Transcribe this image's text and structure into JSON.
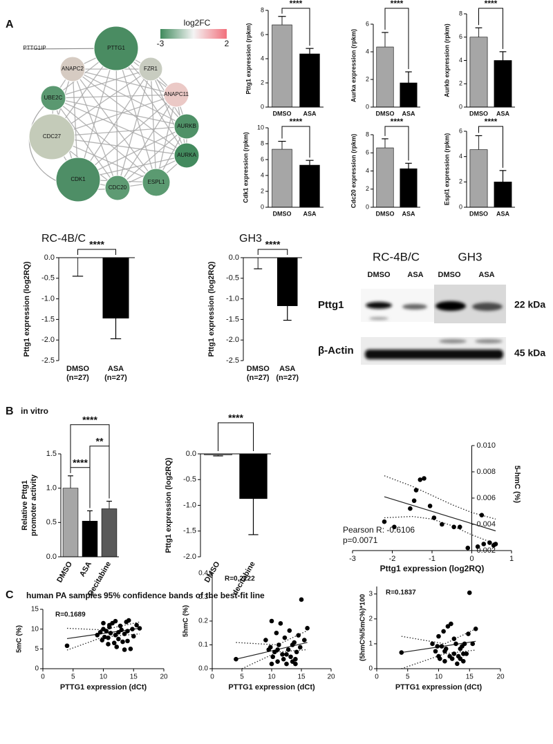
{
  "panel_labels": [
    "A",
    "B",
    "C"
  ],
  "subtitles": [
    "in vitro",
    "human PA samples",
    "95% confidence bands of the best-fit line"
  ],
  "network": {
    "legend_title": "log2FC",
    "legend_ticks": [
      -3,
      2
    ],
    "legend_colors": [
      "#3f8a5c",
      "#f4f4f4",
      "#f2707c"
    ],
    "nodes": [
      {
        "label": "PTTG1IP"
      },
      {
        "label": "PTTG1",
        "color": "#4a8c62"
      },
      {
        "label": "ANAPC2",
        "color": "#d6cbc2"
      },
      {
        "label": "FZR1",
        "color": "#c8ccc0"
      },
      {
        "label": "ANAPC11",
        "color": "#ebc9c6"
      },
      {
        "label": "UBE2C",
        "color": "#5a9870"
      },
      {
        "label": "CDC27",
        "color": "#c4cbb9"
      },
      {
        "label": "AURKB",
        "color": "#4f9167"
      },
      {
        "label": "AURKA",
        "color": "#438a5e"
      },
      {
        "label": "CDK1",
        "color": "#4e8e66"
      },
      {
        "label": "CDC20",
        "color": "#5e9b73"
      },
      {
        "label": "ESPL1",
        "color": "#5b9a71"
      }
    ]
  },
  "blot": {
    "cell_lines": [
      "RC-4B/C",
      "GH3"
    ],
    "lanes": [
      "DMSO",
      "ASA",
      "DMSO",
      "ASA"
    ],
    "proteins": [
      {
        "name": "Pttg1",
        "size": "22 kDa"
      },
      {
        "name": "β-Actin",
        "size": "45 kDa"
      }
    ]
  },
  "chart_data": [
    {
      "type": "bar",
      "ylabel": "Pttg1 expression (rpkm)",
      "categories": [
        "DMSO",
        "ASA"
      ],
      "values": [
        6.8,
        4.4
      ],
      "errors": [
        0.7,
        0.45
      ],
      "colors": [
        "#a6a6a6",
        "#000000"
      ],
      "ylim": [
        0,
        8
      ],
      "yticks": [
        0,
        2,
        4,
        6,
        8
      ],
      "significance": [
        {
          "from": 0,
          "to": 1,
          "label": "****"
        }
      ]
    },
    {
      "type": "bar",
      "ylabel": "Aurka expression (rpkm)",
      "categories": [
        "DMSO",
        "ASA"
      ],
      "values": [
        4.35,
        1.75
      ],
      "errors": [
        1.05,
        0.8
      ],
      "colors": [
        "#a6a6a6",
        "#000000"
      ],
      "ylim": [
        0,
        6
      ],
      "yticks": [
        0,
        2,
        4,
        6
      ],
      "significance": [
        {
          "from": 0,
          "to": 1,
          "label": "****"
        }
      ]
    },
    {
      "type": "bar",
      "ylabel": "Aurkb expression (rpkm)",
      "categories": [
        "DMSO",
        "ASA"
      ],
      "values": [
        6.0,
        4.0
      ],
      "errors": [
        0.8,
        0.75
      ],
      "colors": [
        "#a6a6a6",
        "#000000"
      ],
      "ylim": [
        0,
        8
      ],
      "yticks": [
        0,
        2,
        4,
        6,
        8
      ],
      "significance": [
        {
          "from": 0,
          "to": 1,
          "label": "****"
        }
      ]
    },
    {
      "type": "bar",
      "ylabel": "Cdk1 expression (rpkm)",
      "categories": [
        "DMSO",
        "ASA"
      ],
      "values": [
        7.3,
        5.3
      ],
      "errors": [
        1.0,
        0.6
      ],
      "colors": [
        "#a6a6a6",
        "#000000"
      ],
      "ylim": [
        0,
        10
      ],
      "yticks": [
        0,
        2,
        4,
        6,
        8,
        10
      ],
      "significance": [
        {
          "from": 0,
          "to": 1,
          "label": "****"
        }
      ]
    },
    {
      "type": "bar",
      "ylabel": "Cdc20 expression (rpkm)",
      "categories": [
        "DMSO",
        "ASA"
      ],
      "values": [
        6.55,
        4.25
      ],
      "errors": [
        1.0,
        0.6
      ],
      "colors": [
        "#a6a6a6",
        "#000000"
      ],
      "ylim": [
        0,
        8
      ],
      "yticks": [
        0,
        2,
        4,
        6,
        8
      ],
      "significance": [
        {
          "from": 0,
          "to": 1,
          "label": "****"
        }
      ]
    },
    {
      "type": "bar",
      "ylabel": "Espl1 expression (rpkm)",
      "categories": [
        "DMSO",
        "ASA"
      ],
      "values": [
        4.55,
        2.0
      ],
      "errors": [
        1.1,
        0.9
      ],
      "colors": [
        "#a6a6a6",
        "#000000"
      ],
      "ylim": [
        0,
        6
      ],
      "yticks": [
        0,
        2,
        4,
        6
      ],
      "significance": [
        {
          "from": 0,
          "to": 1,
          "label": "****"
        }
      ]
    },
    {
      "type": "bar",
      "title": "RC-4B/C",
      "ylabel": "Pttg1 expression (log2RQ)",
      "categories": [
        "DMSO",
        "ASA"
      ],
      "category_notes": [
        "(n=27)",
        "(n=27)"
      ],
      "values": [
        0,
        -1.47
      ],
      "errors": [
        0.45,
        0.5
      ],
      "colors": [
        "#ffffff",
        "#000000"
      ],
      "ylim": [
        -2.5,
        0
      ],
      "yticks": [
        {
          "value": 0,
          "label": "0.0"
        },
        -0.5,
        {
          "value": -1,
          "label": "-1.0"
        },
        -1.5,
        {
          "value": -2,
          "label": "-2.0"
        },
        -2.5
      ],
      "significance": [
        {
          "from": 0,
          "to": 1,
          "label": "****"
        }
      ]
    },
    {
      "type": "bar",
      "title": "GH3",
      "ylabel": "Pttg1 expression (log2RQ)",
      "categories": [
        "DMSO",
        "ASA"
      ],
      "category_notes": [
        "(n=27)",
        "(n=27)"
      ],
      "values": [
        0,
        -1.17
      ],
      "errors": [
        0.27,
        0.35
      ],
      "colors": [
        "#ffffff",
        "#000000"
      ],
      "ylim": [
        -2.5,
        0
      ],
      "yticks": [
        {
          "value": 0,
          "label": "0.0"
        },
        -0.5,
        {
          "value": -1,
          "label": "-1.0"
        },
        -1.5,
        {
          "value": -2,
          "label": "-2.0"
        },
        -2.5
      ],
      "significance": [
        {
          "from": 0,
          "to": 1,
          "label": "****"
        }
      ]
    },
    {
      "type": "bar",
      "ylabel": [
        "Relative Pttg1",
        "promoter activity"
      ],
      "categories": [
        "DMSO",
        "ASA",
        "Decitabine"
      ],
      "values": [
        1.0,
        0.52,
        0.7
      ],
      "errors": [
        0.18,
        0.15,
        0.11
      ],
      "colors": [
        "#a6a6a6",
        "#000000",
        "#595959"
      ],
      "ylim": [
        0,
        1.5
      ],
      "yticks": [
        {
          "value": 0,
          "label": "0.0"
        },
        0.5,
        {
          "value": 1,
          "label": "1.0"
        },
        1.5
      ],
      "rotated_labels": true,
      "significance": [
        {
          "from": 0,
          "to": 1,
          "label": "****"
        },
        {
          "from": 1,
          "to": 2,
          "label": "**"
        },
        {
          "from": 0,
          "to": 2,
          "label": "****"
        }
      ]
    },
    {
      "type": "bar",
      "ylabel": "Pttg1 expression (log2RQ)",
      "categories": [
        "DMSO",
        "decitabine"
      ],
      "values": [
        -0.02,
        -0.87
      ],
      "errors": [
        0.02,
        0.7
      ],
      "colors": [
        "#a6a6a6",
        "#000000"
      ],
      "ylim": [
        -2,
        0
      ],
      "yticks": [
        {
          "value": 0,
          "label": "0.0"
        },
        -0.5,
        {
          "value": -1,
          "label": "-1.0"
        },
        -1.5,
        {
          "value": -2,
          "label": "-2.0"
        }
      ],
      "rotated_labels": true,
      "significance": [
        {
          "from": 0,
          "to": 1,
          "label": "****"
        }
      ]
    },
    {
      "type": "scatter",
      "xlabel": "Pttg1 expression (log2RQ)",
      "ylabel": "5-hmC (%)",
      "annotations": [
        "Pearson R: -0.6106",
        "p=0.0071"
      ],
      "color": "#000000",
      "y_axis_at_x": 0,
      "x": [
        -2.2,
        -1.95,
        -1.55,
        -1.45,
        -1.4,
        -1.3,
        -1.2,
        -1.05,
        -0.95,
        -0.75,
        -0.45,
        -0.3,
        -0.1,
        0.15,
        0.25,
        0.3,
        0.45,
        0.55,
        0.6
      ],
      "values": [
        0.0042,
        0.0038,
        0.0052,
        0.0058,
        0.0066,
        0.0074,
        0.0075,
        0.0054,
        0.0045,
        0.004,
        0.0038,
        0.0038,
        0.0022,
        0.0023,
        0.0047,
        0.0025,
        0.0026,
        0.0024,
        0.0025
      ],
      "fit": {
        "x": [
          -2.2,
          0.6
        ],
        "values": [
          0.0061,
          0.0035
        ]
      },
      "band_upper": {
        "x": [
          -2.2,
          -1.5,
          -1,
          -0.5,
          0,
          0.6
        ],
        "values": [
          0.0077,
          0.0069,
          0.0062,
          0.0055,
          0.0049,
          0.0044
        ]
      },
      "band_lower": {
        "x": [
          -2.2,
          -1.5,
          -1,
          -0.5,
          0,
          0.6
        ],
        "values": [
          0.0045,
          0.0046,
          0.0044,
          0.0039,
          0.0032,
          0.0025
        ]
      },
      "xlim": [
        -3,
        1
      ],
      "xticks": [
        -3,
        -2,
        -1,
        0,
        1
      ],
      "ylim": [
        0.002,
        0.01
      ],
      "yticks": [
        0.002,
        0.004,
        0.006,
        0.008,
        {
          "value": 0.01,
          "label": "0.010"
        }
      ]
    },
    {
      "type": "scatter",
      "xlabel": "PTTG1 expression (dCt)",
      "ylabel": "5mC (%)",
      "annotations": [
        "R=0.1689"
      ],
      "color": "#000000",
      "x": [
        4,
        9,
        9.5,
        10,
        10.2,
        10.5,
        10.8,
        11,
        11.2,
        11.5,
        11.8,
        12,
        12.2,
        12.5,
        12.8,
        13,
        13.2,
        13.5,
        13.8,
        14,
        14.2,
        14.5,
        14.8,
        15,
        15.5,
        16,
        10,
        11,
        12.5,
        13.5,
        14,
        10.8,
        9.8,
        12
      ],
      "values": [
        5.8,
        8.5,
        9.2,
        10,
        8,
        9.5,
        7.8,
        10.5,
        9,
        11.5,
        6.5,
        8.5,
        5.5,
        7.5,
        10.8,
        9.8,
        6.8,
        8.8,
        11.8,
        7,
        12.2,
        5,
        10,
        8.2,
        11,
        10.2,
        11.5,
        11,
        9.2,
        4.8,
        9.5,
        6.2,
        7.2,
        12
      ],
      "fit": {
        "x": [
          4,
          16
        ],
        "values": [
          7.6,
          10.2
        ]
      },
      "band_upper": {
        "x": [
          4,
          10,
          16
        ],
        "values": [
          10.2,
          9.8,
          11.8
        ]
      },
      "band_lower": {
        "x": [
          4,
          10,
          16
        ],
        "values": [
          4.7,
          8,
          8.8
        ]
      },
      "xlim": [
        0,
        20
      ],
      "xticks": [
        0,
        5,
        10,
        15,
        20
      ],
      "ylim": [
        0,
        15
      ],
      "yticks": [
        0,
        5,
        10,
        15
      ]
    },
    {
      "type": "scatter",
      "xlabel": "PTTG1 expression (dCt)",
      "ylabel": "5hmC (%)",
      "annotations": [
        "R=0.2222"
      ],
      "color": "#000000",
      "x": [
        4,
        9,
        9.5,
        10,
        10.2,
        10.5,
        10.8,
        11,
        11.2,
        11.5,
        11.8,
        12,
        12.2,
        12.5,
        12.8,
        13,
        13.2,
        13.5,
        13.8,
        14,
        14.2,
        14.5,
        14.8,
        15,
        15.5,
        16,
        10,
        11,
        12.5,
        13.5,
        14,
        9.8
      ],
      "values": [
        0.04,
        0.12,
        0.08,
        0.2,
        0.05,
        0.07,
        0.15,
        0.03,
        0.1,
        0.19,
        0.06,
        0.04,
        0.13,
        0.02,
        0.08,
        0.16,
        0.05,
        0.03,
        0.11,
        0.04,
        0.07,
        0.14,
        0.09,
        0.29,
        0.12,
        0.17,
        0.02,
        0.08,
        0.06,
        0.1,
        0.02,
        0.09
      ],
      "fit": {
        "x": [
          4,
          16
        ],
        "values": [
          0.04,
          0.11
        ]
      },
      "band_upper": {
        "x": [
          4,
          11,
          16
        ],
        "values": [
          0.11,
          0.1,
          0.16
        ]
      },
      "band_lower": {
        "x": [
          5,
          11,
          16
        ],
        "values": [
          0.0,
          0.07,
          0.08
        ]
      },
      "xlim": [
        0,
        20
      ],
      "xticks": [
        0,
        5,
        10,
        15,
        20
      ],
      "ylim": [
        0,
        0.4
      ],
      "yticks": [
        {
          "value": 0,
          "label": "0.0"
        },
        0.1,
        0.2,
        0.3,
        0.4
      ]
    },
    {
      "type": "scatter",
      "xlabel": "PTTG1 expression (dCt)",
      "ylabel": "(5hmC%/5mC%)*100",
      "annotations": [
        "R=0.1837"
      ],
      "color": "#000000",
      "x": [
        4,
        9,
        9.5,
        10,
        10.2,
        10.5,
        10.8,
        11,
        11.2,
        11.5,
        11.8,
        12,
        12.2,
        12.5,
        12.8,
        13,
        13.2,
        13.5,
        13.8,
        14,
        14.2,
        14.5,
        14.8,
        15,
        15.5,
        16,
        10,
        11,
        12.5,
        13.5,
        14,
        9.8
      ],
      "values": [
        0.65,
        1.0,
        0.7,
        1.3,
        0.4,
        0.9,
        1.5,
        0.3,
        0.8,
        1.7,
        0.5,
        1.8,
        0.4,
        0.6,
        1.0,
        0.2,
        0.5,
        0.8,
        0.9,
        0.3,
        1.0,
        0.6,
        1.4,
        3.05,
        1.0,
        1.6,
        0.5,
        0.7,
        1.2,
        0.4,
        0.6,
        0.9
      ],
      "fit": {
        "x": [
          4,
          16
        ],
        "values": [
          0.65,
          1.1
        ]
      },
      "band_upper": {
        "x": [
          4,
          11,
          16
        ],
        "values": [
          1.3,
          1.0,
          1.6
        ]
      },
      "band_lower": {
        "x": [
          4,
          11,
          16
        ],
        "values": [
          0.0,
          0.6,
          0.75
        ]
      },
      "xlim": [
        0,
        20
      ],
      "xticks": [
        0,
        5,
        10,
        15,
        20
      ],
      "ylim": [
        0,
        3.3
      ],
      "yticks": [
        0,
        1,
        2,
        3
      ]
    }
  ]
}
